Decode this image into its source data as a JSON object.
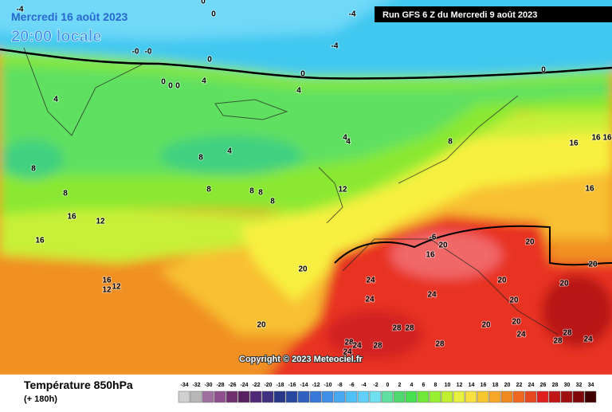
{
  "header": {
    "date": "Mercredi 16 août 2023",
    "time": "20:00 locale",
    "run": "Run GFS 6 Z du Mercredi 9 août 2023"
  },
  "footer": {
    "title": "Température 850hPa",
    "lead": "(+ 180h)",
    "copyright": "Copyright © 2023 Meteociel.fr"
  },
  "scale": {
    "values": [
      -34,
      -32,
      -30,
      -28,
      -26,
      -24,
      -22,
      -20,
      -18,
      -16,
      -14,
      -12,
      -10,
      -8,
      -6,
      -4,
      -2,
      0,
      2,
      4,
      6,
      8,
      10,
      12,
      14,
      16,
      18,
      20,
      22,
      24,
      26,
      28,
      30,
      32,
      34
    ],
    "colors": [
      "#d0d0d0",
      "#b8b8b8",
      "#a070a0",
      "#905090",
      "#703070",
      "#582060",
      "#502878",
      "#403080",
      "#283888",
      "#2848a0",
      "#3060c0",
      "#3878d8",
      "#4090e8",
      "#48a8f0",
      "#50c0f8",
      "#60d0f8",
      "#70e0f0",
      "#60e0a0",
      "#50d870",
      "#48e050",
      "#70e838",
      "#98f030",
      "#c0f030",
      "#e8f040",
      "#f8e040",
      "#f8c830",
      "#f8a828",
      "#f08820",
      "#f06820",
      "#e84820",
      "#e02020",
      "#c01818",
      "#a01010",
      "#800808",
      "#400000"
    ]
  },
  "map": {
    "contour_labels": [
      "-4",
      "0",
      "0",
      "-4",
      "-4",
      "-0",
      "-0",
      "0",
      "0",
      "0",
      "0",
      "0",
      "0",
      "4",
      "4",
      "4",
      "4",
      "4",
      "4",
      "8",
      "8",
      "8",
      "8",
      "8",
      "8",
      "8",
      "8",
      "16",
      "12",
      "12",
      "16",
      "16",
      "16",
      "16",
      "16",
      "16",
      "12",
      "12",
      "20",
      "20",
      "-6",
      "16",
      "20",
      "20",
      "20",
      "24",
      "24",
      "24",
      "28",
      "28",
      "28",
      "28",
      "24",
      "28",
      "24",
      "20",
      "20",
      "20",
      "20",
      "20",
      "24",
      "28",
      "28",
      "24"
    ]
  }
}
